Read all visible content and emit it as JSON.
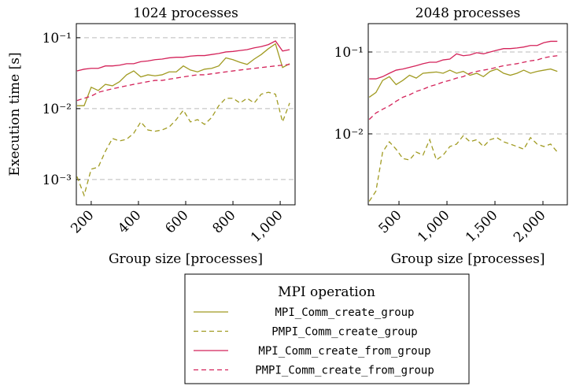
{
  "chart_data": [
    {
      "type": "line",
      "title": "1024 processes",
      "xlabel": "Group size [processes]",
      "ylabel": "Execution time [s]",
      "log_y": true,
      "grid": true,
      "x": [
        140,
        170,
        200,
        230,
        260,
        290,
        320,
        350,
        380,
        410,
        440,
        470,
        500,
        530,
        560,
        590,
        620,
        650,
        680,
        710,
        740,
        770,
        800,
        830,
        860,
        890,
        920,
        950,
        980,
        1010,
        1040
      ],
      "xlim": [
        137,
        1063
      ],
      "xticks": [
        200,
        400,
        600,
        800,
        {
          "value": 1000,
          "label": "1,000"
        }
      ],
      "ylim": [
        0.00044,
        0.158
      ],
      "yticks": [
        {
          "value": 0.001,
          "label": "10⁻³"
        },
        {
          "value": 0.01,
          "label": "10⁻²"
        },
        {
          "value": 0.1,
          "label": "10⁻¹"
        }
      ],
      "series": [
        {
          "values": [
            0.011,
            0.011,
            0.02,
            0.018,
            0.022,
            0.021,
            0.024,
            0.03,
            0.034,
            0.028,
            0.03,
            0.029,
            0.03,
            0.033,
            0.033,
            0.04,
            0.035,
            0.033,
            0.036,
            0.037,
            0.04,
            0.052,
            0.049,
            0.045,
            0.042,
            0.05,
            0.058,
            0.07,
            0.082,
            0.038,
            0.043
          ]
        },
        {
          "values": [
            0.0011,
            0.0006,
            0.0014,
            0.0015,
            0.0025,
            0.0038,
            0.0035,
            0.0037,
            0.0045,
            0.0065,
            0.005,
            0.0048,
            0.005,
            0.0055,
            0.007,
            0.0095,
            0.0065,
            0.007,
            0.006,
            0.0075,
            0.011,
            0.014,
            0.014,
            0.012,
            0.014,
            0.012,
            0.016,
            0.017,
            0.016,
            0.0065,
            0.012
          ]
        },
        {
          "values": [
            0.034,
            0.036,
            0.037,
            0.037,
            0.04,
            0.04,
            0.041,
            0.043,
            0.043,
            0.046,
            0.047,
            0.049,
            0.05,
            0.052,
            0.053,
            0.053,
            0.055,
            0.056,
            0.056,
            0.058,
            0.06,
            0.063,
            0.064,
            0.066,
            0.068,
            0.072,
            0.075,
            0.08,
            0.09,
            0.065,
            0.068
          ]
        },
        {
          "values": [
            0.013,
            0.014,
            0.015,
            0.017,
            0.018,
            0.019,
            0.02,
            0.021,
            0.022,
            0.023,
            0.024,
            0.025,
            0.025,
            0.026,
            0.027,
            0.028,
            0.029,
            0.03,
            0.03,
            0.031,
            0.032,
            0.033,
            0.034,
            0.035,
            0.036,
            0.037,
            0.038,
            0.039,
            0.04,
            0.041,
            0.042
          ]
        }
      ]
    },
    {
      "type": "line",
      "title": "2048 processes",
      "xlabel": "Group size [processes]",
      "log_y": true,
      "grid": true,
      "x": [
        190,
        260,
        330,
        400,
        470,
        540,
        610,
        680,
        750,
        820,
        890,
        960,
        1030,
        1100,
        1170,
        1240,
        1310,
        1380,
        1450,
        1520,
        1590,
        1660,
        1730,
        1800,
        1870,
        1940,
        2010,
        2080,
        2150
      ],
      "xlim": [
        180,
        2254
      ],
      "xticks": [
        500,
        {
          "value": 1000,
          "label": "1,000"
        },
        {
          "value": 1500,
          "label": "1,500"
        },
        {
          "value": 2000,
          "label": "2,000"
        }
      ],
      "ylim": [
        0.00136,
        0.222
      ],
      "yticks": [
        {
          "value": 0.01,
          "label": "10⁻²"
        },
        {
          "value": 0.1,
          "label": "10⁻¹"
        }
      ],
      "series": [
        {
          "values": [
            0.028,
            0.032,
            0.045,
            0.05,
            0.04,
            0.045,
            0.052,
            0.048,
            0.055,
            0.056,
            0.057,
            0.055,
            0.06,
            0.055,
            0.058,
            0.052,
            0.055,
            0.05,
            0.058,
            0.062,
            0.055,
            0.052,
            0.055,
            0.06,
            0.055,
            0.058,
            0.06,
            0.062,
            0.058
          ]
        },
        {
          "values": [
            0.0015,
            0.002,
            0.006,
            0.008,
            0.0065,
            0.005,
            0.0048,
            0.006,
            0.0055,
            0.0085,
            0.0048,
            0.0055,
            0.007,
            0.0075,
            0.0095,
            0.008,
            0.0085,
            0.007,
            0.0085,
            0.009,
            0.008,
            0.0075,
            0.007,
            0.0065,
            0.009,
            0.0075,
            0.007,
            0.0075,
            0.006
          ]
        },
        {
          "values": [
            0.047,
            0.047,
            0.05,
            0.055,
            0.06,
            0.062,
            0.065,
            0.068,
            0.072,
            0.075,
            0.075,
            0.08,
            0.082,
            0.095,
            0.09,
            0.092,
            0.098,
            0.095,
            0.1,
            0.105,
            0.11,
            0.11,
            0.112,
            0.115,
            0.12,
            0.12,
            0.13,
            0.135,
            0.135
          ]
        },
        {
          "values": [
            0.015,
            0.018,
            0.02,
            0.022,
            0.025,
            0.028,
            0.03,
            0.033,
            0.035,
            0.038,
            0.04,
            0.043,
            0.045,
            0.048,
            0.05,
            0.055,
            0.058,
            0.06,
            0.062,
            0.065,
            0.068,
            0.07,
            0.072,
            0.075,
            0.078,
            0.08,
            0.085,
            0.088,
            0.09
          ]
        }
      ]
    }
  ],
  "legend": {
    "title": "MPI operation",
    "entries": [
      {
        "name": "MPI_Comm_create_group",
        "color": "#a19b22",
        "dashed": false
      },
      {
        "name": "PMPI_Comm_create_group",
        "color": "#a19b22",
        "dashed": true
      },
      {
        "name": "MPI_Comm_create_from_group",
        "color": "#d4235a",
        "dashed": false
      },
      {
        "name": "PMPI_Comm_create_from_group",
        "color": "#d4235a",
        "dashed": true
      }
    ]
  }
}
